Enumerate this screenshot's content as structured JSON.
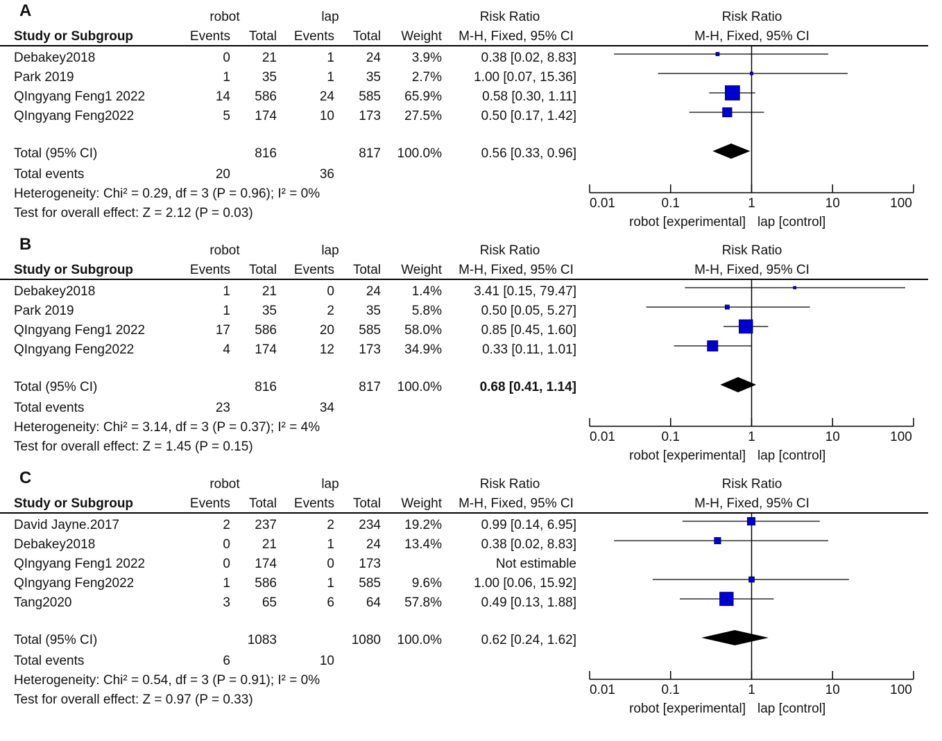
{
  "chart_data": [
    {
      "type": "forest",
      "panel_label": "A",
      "header": {
        "group1": "robot",
        "group2": "lap",
        "col_study": "Study or Subgroup",
        "col_events": "Events",
        "col_total": "Total",
        "col_weight": "Weight",
        "rr_title": "Risk Ratio",
        "rr_method": "M-H, Fixed, 95% CI",
        "plot_title": "Risk Ratio",
        "plot_method": "M-H, Fixed, 95% CI"
      },
      "studies": [
        {
          "name": "Debakey2018",
          "e1": "0",
          "n1": "21",
          "e2": "1",
          "n2": "24",
          "weight": "3.9%",
          "ci_text": "0.38 [0.02, 8.83]",
          "rr": 0.38,
          "lo": 0.02,
          "hi": 8.83,
          "w": 3.9
        },
        {
          "name": "Park 2019",
          "e1": "1",
          "n1": "35",
          "e2": "1",
          "n2": "35",
          "weight": "2.7%",
          "ci_text": "1.00 [0.07, 15.36]",
          "rr": 1.0,
          "lo": 0.07,
          "hi": 15.36,
          "w": 2.7
        },
        {
          "name": "QIngyang Feng1 2022",
          "e1": "14",
          "n1": "586",
          "e2": "24",
          "n2": "585",
          "weight": "65.9%",
          "ci_text": "0.58 [0.30, 1.11]",
          "rr": 0.58,
          "lo": 0.3,
          "hi": 1.11,
          "w": 65.9
        },
        {
          "name": "QIngyang Feng2022",
          "e1": "5",
          "n1": "174",
          "e2": "10",
          "n2": "173",
          "weight": "27.5%",
          "ci_text": "0.50 [0.17, 1.42]",
          "rr": 0.5,
          "lo": 0.17,
          "hi": 1.42,
          "w": 27.5
        }
      ],
      "total": {
        "label": "Total (95% CI)",
        "n1": "816",
        "n2": "817",
        "weight": "100.0%",
        "ci_text": "0.56 [0.33, 0.96]",
        "rr": 0.56,
        "lo": 0.33,
        "hi": 0.96,
        "ci_bold": false
      },
      "events": {
        "label": "Total events",
        "e1": "20",
        "e2": "36"
      },
      "heterogeneity": "Heterogeneity: Chi² = 0.29, df = 3 (P = 0.96); I² = 0%",
      "overall": "Test for overall effect: Z = 2.12 (P = 0.03)",
      "axis": {
        "ticks": [
          0.01,
          0.1,
          1,
          10,
          100
        ],
        "tick_labels": [
          "0.01",
          "0.1",
          "1",
          "10",
          "100"
        ],
        "scale": "log",
        "left_label": "robot [experimental]",
        "right_label": "lap [control]"
      }
    },
    {
      "type": "forest",
      "panel_label": "B",
      "header": {
        "group1": "robot",
        "group2": "lap",
        "col_study": "Study or Subgroup",
        "col_events": "Events",
        "col_total": "Total",
        "col_weight": "Weight",
        "rr_title": "Risk Ratio",
        "rr_method": "M-H, Fixed, 95% CI",
        "plot_title": "Risk Ratio",
        "plot_method": "M-H, Fixed, 95% CI"
      },
      "studies": [
        {
          "name": "Debakey2018",
          "e1": "1",
          "n1": "21",
          "e2": "0",
          "n2": "24",
          "weight": "1.4%",
          "ci_text": "3.41 [0.15, 79.47]",
          "rr": 3.41,
          "lo": 0.15,
          "hi": 79.47,
          "w": 1.4
        },
        {
          "name": "Park 2019",
          "e1": "1",
          "n1": "35",
          "e2": "2",
          "n2": "35",
          "weight": "5.8%",
          "ci_text": "0.50 [0.05, 5.27]",
          "rr": 0.5,
          "lo": 0.05,
          "hi": 5.27,
          "w": 5.8
        },
        {
          "name": "QIngyang Feng1 2022",
          "e1": "17",
          "n1": "586",
          "e2": "20",
          "n2": "585",
          "weight": "58.0%",
          "ci_text": "0.85 [0.45, 1.60]",
          "rr": 0.85,
          "lo": 0.45,
          "hi": 1.6,
          "w": 58.0
        },
        {
          "name": "QIngyang Feng2022",
          "e1": "4",
          "n1": "174",
          "e2": "12",
          "n2": "173",
          "weight": "34.9%",
          "ci_text": "0.33 [0.11, 1.01]",
          "rr": 0.33,
          "lo": 0.11,
          "hi": 1.01,
          "w": 34.9
        }
      ],
      "total": {
        "label": "Total (95% CI)",
        "n1": "816",
        "n2": "817",
        "weight": "100.0%",
        "ci_text": "0.68 [0.41, 1.14]",
        "rr": 0.68,
        "lo": 0.41,
        "hi": 1.14,
        "ci_bold": true
      },
      "events": {
        "label": "Total events",
        "e1": "23",
        "e2": "34"
      },
      "heterogeneity": "Heterogeneity: Chi² = 3.14, df = 3 (P = 0.37); I² = 4%",
      "overall": "Test for overall effect: Z = 1.45 (P = 0.15)",
      "axis": {
        "ticks": [
          0.01,
          0.1,
          1,
          10,
          100
        ],
        "tick_labels": [
          "0.01",
          "0.1",
          "1",
          "10",
          "100"
        ],
        "scale": "log",
        "left_label": "robot [experimental]",
        "right_label": "lap [control]"
      }
    },
    {
      "type": "forest",
      "panel_label": "C",
      "header": {
        "group1": "robot",
        "group2": "lap",
        "col_study": "Study or Subgroup",
        "col_events": "Events",
        "col_total": "Total",
        "col_weight": "Weight",
        "rr_title": "Risk Ratio",
        "rr_method": "M-H, Fixed, 95% CI",
        "plot_title": "Risk Ratio",
        "plot_method": "M-H, Fixed, 95% CI"
      },
      "studies": [
        {
          "name": "David Jayne.2017",
          "e1": "2",
          "n1": "237",
          "e2": "2",
          "n2": "234",
          "weight": "19.2%",
          "ci_text": "0.99 [0.14, 6.95]",
          "rr": 0.99,
          "lo": 0.14,
          "hi": 6.95,
          "w": 19.2
        },
        {
          "name": "Debakey2018",
          "e1": "0",
          "n1": "21",
          "e2": "1",
          "n2": "24",
          "weight": "13.4%",
          "ci_text": "0.38 [0.02, 8.83]",
          "rr": 0.38,
          "lo": 0.02,
          "hi": 8.83,
          "w": 13.4
        },
        {
          "name": "QIngyang Feng1 2022",
          "e1": "0",
          "n1": "174",
          "e2": "0",
          "n2": "173",
          "weight": "",
          "ci_text": "Not estimable",
          "rr": null,
          "lo": null,
          "hi": null,
          "w": 0
        },
        {
          "name": "QIngyang Feng2022",
          "e1": "1",
          "n1": "586",
          "e2": "1",
          "n2": "585",
          "weight": "9.6%",
          "ci_text": "1.00 [0.06, 15.92]",
          "rr": 1.0,
          "lo": 0.06,
          "hi": 15.92,
          "w": 9.6
        },
        {
          "name": "Tang2020",
          "e1": "3",
          "n1": "65",
          "e2": "6",
          "n2": "64",
          "weight": "57.8%",
          "ci_text": "0.49 [0.13, 1.88]",
          "rr": 0.49,
          "lo": 0.13,
          "hi": 1.88,
          "w": 57.8
        }
      ],
      "total": {
        "label": "Total (95% CI)",
        "n1": "1083",
        "n2": "1080",
        "weight": "100.0%",
        "ci_text": "0.62 [0.24, 1.62]",
        "rr": 0.62,
        "lo": 0.24,
        "hi": 1.62,
        "ci_bold": false
      },
      "events": {
        "label": "Total events",
        "e1": "6",
        "e2": "10"
      },
      "heterogeneity": "Heterogeneity: Chi² = 0.54, df = 3 (P = 0.91); I² = 0%",
      "overall": "Test for overall effect: Z = 0.97 (P = 0.33)",
      "axis": {
        "ticks": [
          0.01,
          0.1,
          1,
          10,
          100
        ],
        "tick_labels": [
          "0.01",
          "0.1",
          "1",
          "10",
          "100"
        ],
        "scale": "log",
        "left_label": "robot [experimental]",
        "right_label": "lap [control]"
      }
    }
  ],
  "colors": {
    "square": "#0000cc",
    "diamond": "#000000",
    "line": "#000000"
  }
}
